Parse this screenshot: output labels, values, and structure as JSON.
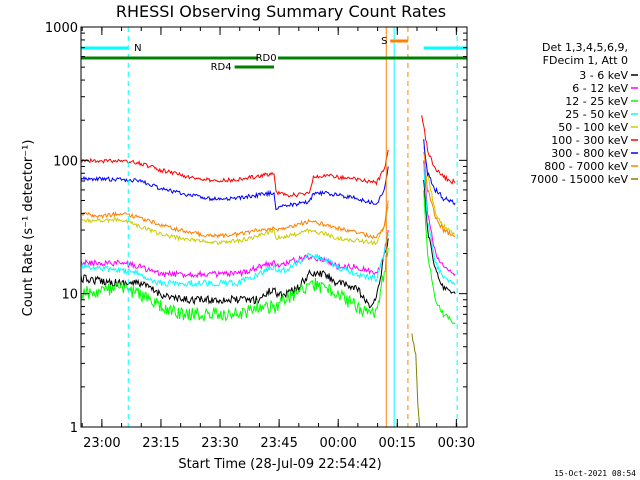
{
  "chart_data": {
    "type": "line",
    "title": "RHESSI Observing Summary Count Rates",
    "xlabel": "Start Time (28-Jul-09 22:54:42)",
    "ylabel": "Count Rate (s⁻¹ detector⁻¹)",
    "y_scale": "log",
    "ylim": [
      1,
      1000
    ],
    "y_ticks": [
      "1",
      "10",
      "100",
      "1000"
    ],
    "x_unit": "minutes from 22:54:42",
    "xlim": [
      0,
      98
    ],
    "x_ticks": [
      {
        "label": "23:00",
        "t": 5.3
      },
      {
        "label": "23:15",
        "t": 20.3
      },
      {
        "label": "23:30",
        "t": 35.3
      },
      {
        "label": "23:45",
        "t": 50.3
      },
      {
        "label": "00:00",
        "t": 65.3
      },
      {
        "label": "00:15",
        "t": 80.3
      },
      {
        "label": "00:30",
        "t": 95.3
      }
    ],
    "legend_header": [
      "Det 1,3,4,5,6,9,",
      "FDecim 1, Att 0"
    ],
    "legend_placement": "right",
    "grid": false,
    "series": [
      {
        "name": "3 - 6 keV",
        "color": "#000000",
        "points": [
          [
            0,
            13
          ],
          [
            10,
            12
          ],
          [
            15,
            12
          ],
          [
            20,
            10
          ],
          [
            25,
            9
          ],
          [
            30,
            9
          ],
          [
            35,
            9
          ],
          [
            40,
            9
          ],
          [
            45,
            9
          ],
          [
            49,
            11
          ],
          [
            49.5,
            10
          ],
          [
            52,
            10
          ],
          [
            55,
            11
          ],
          [
            58,
            14
          ],
          [
            62,
            14
          ],
          [
            65,
            12
          ],
          [
            70,
            11
          ],
          [
            73,
            8
          ],
          [
            75,
            9
          ],
          [
            77,
            20
          ],
          [
            78,
            26
          ]
        ]
      },
      {
        "name": "6 - 12 keV",
        "color": "#ff00ff",
        "points": [
          [
            0,
            17
          ],
          [
            10,
            17
          ],
          [
            15,
            16
          ],
          [
            20,
            14
          ],
          [
            25,
            14
          ],
          [
            30,
            14
          ],
          [
            35,
            14
          ],
          [
            40,
            14
          ],
          [
            45,
            16
          ],
          [
            49,
            17
          ],
          [
            49.5,
            16
          ],
          [
            52,
            17
          ],
          [
            55,
            18
          ],
          [
            58,
            19
          ],
          [
            62,
            18
          ],
          [
            65,
            16
          ],
          [
            70,
            16
          ],
          [
            75,
            14
          ],
          [
            77,
            20
          ],
          [
            78,
            30
          ]
        ]
      },
      {
        "name": "12 - 25 keV",
        "color": "#00ff00",
        "points": [
          [
            0,
            10
          ],
          [
            10,
            11
          ],
          [
            15,
            10
          ],
          [
            20,
            8
          ],
          [
            25,
            7
          ],
          [
            30,
            7
          ],
          [
            35,
            7
          ],
          [
            40,
            7
          ],
          [
            45,
            8
          ],
          [
            49,
            8
          ],
          [
            49.5,
            8
          ],
          [
            52,
            9
          ],
          [
            55,
            10
          ],
          [
            58,
            12
          ],
          [
            62,
            11
          ],
          [
            65,
            10
          ],
          [
            70,
            8
          ],
          [
            75,
            7
          ],
          [
            77,
            15
          ],
          [
            78,
            22
          ]
        ]
      },
      {
        "name": "25 - 50 keV",
        "color": "#00ffff",
        "points": [
          [
            0,
            16
          ],
          [
            10,
            15
          ],
          [
            15,
            14
          ],
          [
            20,
            12
          ],
          [
            25,
            12
          ],
          [
            30,
            12
          ],
          [
            35,
            12
          ],
          [
            40,
            12
          ],
          [
            45,
            14
          ],
          [
            49,
            16
          ],
          [
            49.5,
            15
          ],
          [
            52,
            15
          ],
          [
            55,
            17
          ],
          [
            58,
            20
          ],
          [
            62,
            18
          ],
          [
            65,
            16
          ],
          [
            70,
            14
          ],
          [
            75,
            13
          ],
          [
            77,
            20
          ],
          [
            78,
            28
          ]
        ]
      },
      {
        "name": "50 - 100 keV",
        "color": "#cccc00",
        "points": [
          [
            0,
            35
          ],
          [
            10,
            36
          ],
          [
            15,
            32
          ],
          [
            20,
            28
          ],
          [
            25,
            26
          ],
          [
            30,
            25
          ],
          [
            35,
            24
          ],
          [
            40,
            25
          ],
          [
            45,
            27
          ],
          [
            49,
            30
          ],
          [
            49.5,
            26
          ],
          [
            52,
            27
          ],
          [
            55,
            28
          ],
          [
            58,
            30
          ],
          [
            62,
            28
          ],
          [
            65,
            26
          ],
          [
            70,
            25
          ],
          [
            75,
            24
          ],
          [
            77,
            32
          ],
          [
            78,
            45
          ]
        ]
      },
      {
        "name": "100 - 300 keV",
        "color": "#ff0000",
        "points": [
          [
            0,
            100
          ],
          [
            5,
            98
          ],
          [
            10,
            100
          ],
          [
            15,
            95
          ],
          [
            20,
            85
          ],
          [
            25,
            78
          ],
          [
            30,
            72
          ],
          [
            35,
            70
          ],
          [
            40,
            72
          ],
          [
            45,
            76
          ],
          [
            49,
            80
          ],
          [
            49.5,
            58
          ],
          [
            52,
            55
          ],
          [
            55,
            55
          ],
          [
            58,
            58
          ],
          [
            59,
            75
          ],
          [
            62,
            78
          ],
          [
            65,
            75
          ],
          [
            70,
            72
          ],
          [
            75,
            68
          ],
          [
            77,
            85
          ],
          [
            78,
            120
          ]
        ]
      },
      {
        "name": "300 - 800 keV",
        "color": "#0000ff",
        "points": [
          [
            0,
            73
          ],
          [
            10,
            72
          ],
          [
            15,
            70
          ],
          [
            20,
            62
          ],
          [
            25,
            57
          ],
          [
            30,
            53
          ],
          [
            35,
            51
          ],
          [
            40,
            52
          ],
          [
            45,
            55
          ],
          [
            49,
            57
          ],
          [
            49.5,
            44
          ],
          [
            52,
            46
          ],
          [
            55,
            47
          ],
          [
            58,
            49
          ],
          [
            59,
            56
          ],
          [
            62,
            57
          ],
          [
            65,
            55
          ],
          [
            70,
            52
          ],
          [
            75,
            47
          ],
          [
            77,
            60
          ],
          [
            78,
            90
          ]
        ]
      },
      {
        "name": "800 - 7000 keV",
        "color": "#ff8000",
        "points": [
          [
            0,
            40
          ],
          [
            5,
            38
          ],
          [
            10,
            40
          ],
          [
            15,
            37
          ],
          [
            20,
            33
          ],
          [
            25,
            30
          ],
          [
            30,
            28
          ],
          [
            35,
            27
          ],
          [
            40,
            28
          ],
          [
            45,
            30
          ],
          [
            49,
            31
          ],
          [
            49.5,
            30
          ],
          [
            52,
            31
          ],
          [
            55,
            33
          ],
          [
            58,
            35
          ],
          [
            62,
            33
          ],
          [
            65,
            31
          ],
          [
            70,
            29
          ],
          [
            75,
            26
          ],
          [
            77,
            32
          ],
          [
            78,
            50
          ]
        ]
      },
      {
        "name": "7000 - 15000 keV",
        "color": "#808000",
        "points": [
          [
            84,
            5
          ],
          [
            85,
            3.5
          ],
          [
            85.5,
            1.5
          ],
          [
            86,
            1
          ]
        ]
      }
    ],
    "after_flare": [
      {
        "color": "#000000",
        "points": [
          [
            87,
            70
          ],
          [
            88,
            30
          ],
          [
            90,
            15
          ],
          [
            92,
            11
          ],
          [
            95,
            10
          ]
        ]
      },
      {
        "color": "#ff00ff",
        "points": [
          [
            87,
            100
          ],
          [
            88,
            40
          ],
          [
            90,
            20
          ],
          [
            92,
            16
          ],
          [
            95,
            14
          ]
        ]
      },
      {
        "color": "#00ff00",
        "points": [
          [
            87,
            60
          ],
          [
            88,
            20
          ],
          [
            90,
            9
          ],
          [
            92,
            7
          ],
          [
            95,
            6
          ]
        ]
      },
      {
        "color": "#00ffff",
        "points": [
          [
            87,
            90
          ],
          [
            88,
            35
          ],
          [
            90,
            17
          ],
          [
            92,
            13
          ],
          [
            95,
            12
          ]
        ]
      },
      {
        "color": "#cccc00",
        "points": [
          [
            87,
            130
          ],
          [
            88,
            80
          ],
          [
            90,
            40
          ],
          [
            92,
            32
          ],
          [
            95,
            28
          ]
        ]
      },
      {
        "color": "#ff0000",
        "points": [
          [
            86.5,
            210
          ],
          [
            88,
            120
          ],
          [
            90,
            85
          ],
          [
            92,
            75
          ],
          [
            95,
            68
          ]
        ]
      },
      {
        "color": "#0000ff",
        "points": [
          [
            87,
            140
          ],
          [
            88,
            80
          ],
          [
            90,
            60
          ],
          [
            92,
            52
          ],
          [
            95,
            48
          ]
        ]
      },
      {
        "color": "#ff8000",
        "points": [
          [
            87,
            120
          ],
          [
            88,
            60
          ],
          [
            90,
            38
          ],
          [
            92,
            30
          ],
          [
            95,
            27
          ]
        ]
      }
    ],
    "bars": {
      "RD4": {
        "label": "RD4",
        "color": "#008000",
        "x": [
          39,
          49
        ]
      },
      "RD0": {
        "label": "RD0",
        "color": "#008000",
        "segments": [
          [
            0,
            45
          ],
          [
            50,
            98
          ]
        ],
        "label_x": 47
      },
      "N": {
        "label": "N",
        "color": "#00ffff",
        "segments": [
          [
            0,
            12
          ],
          [
            87,
            98
          ]
        ],
        "label_x": 13.5
      },
      "S": {
        "label": "S",
        "color": "#ff8000",
        "x": [
          78.5,
          83
        ],
        "label_x": 77
      }
    },
    "vlines": [
      {
        "t": 0,
        "color": "#00ffff",
        "style": "solid"
      },
      {
        "t": 12,
        "color": "#00ffff",
        "style": "dashed"
      },
      {
        "t": 77.5,
        "color": "#ff8000",
        "style": "solid"
      },
      {
        "t": 79.5,
        "color": "#00ffff",
        "style": "solid"
      },
      {
        "t": 83,
        "color": "#ff8000",
        "style": "dashed"
      },
      {
        "t": 95.5,
        "color": "#00ffff",
        "style": "dashed"
      }
    ]
  },
  "footer": {
    "timestamp": "15-Oct-2021 08:54"
  }
}
